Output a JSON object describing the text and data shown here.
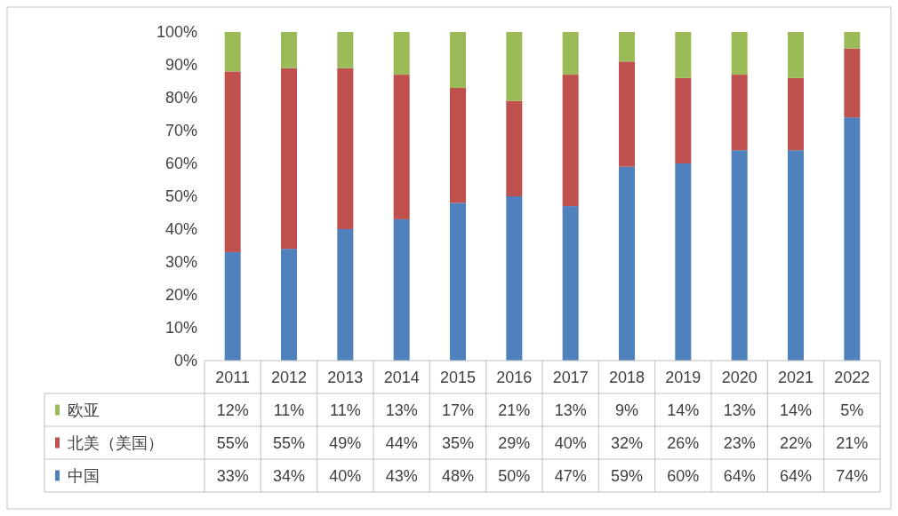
{
  "chart_data": {
    "type": "bar",
    "stacked": true,
    "categories": [
      "2011",
      "2012",
      "2013",
      "2014",
      "2015",
      "2016",
      "2017",
      "2018",
      "2019",
      "2020",
      "2021",
      "2022"
    ],
    "series": [
      {
        "name": "中国",
        "color": "#4f81bd",
        "values": [
          33,
          34,
          40,
          43,
          48,
          50,
          47,
          59,
          60,
          64,
          64,
          74
        ],
        "value_labels": [
          "33%",
          "34%",
          "40%",
          "43%",
          "48%",
          "50%",
          "47%",
          "59%",
          "60%",
          "64%",
          "64%",
          "74%"
        ]
      },
      {
        "name": "北美（美国）",
        "color": "#c0504d",
        "values": [
          55,
          55,
          49,
          44,
          35,
          29,
          40,
          32,
          26,
          23,
          22,
          21
        ],
        "value_labels": [
          "55%",
          "55%",
          "49%",
          "44%",
          "35%",
          "29%",
          "40%",
          "32%",
          "26%",
          "23%",
          "22%",
          "21%"
        ]
      },
      {
        "name": "欧亚",
        "color": "#9bbb59",
        "values": [
          12,
          11,
          11,
          13,
          17,
          21,
          13,
          9,
          14,
          13,
          14,
          5
        ],
        "value_labels": [
          "12%",
          "11%",
          "11%",
          "13%",
          "17%",
          "21%",
          "13%",
          "9%",
          "14%",
          "13%",
          "14%",
          "5%"
        ]
      }
    ],
    "ylim": [
      0,
      100
    ],
    "yticks": [
      {
        "value": 0,
        "label": "0%"
      },
      {
        "value": 10,
        "label": "10%"
      },
      {
        "value": 20,
        "label": "20%"
      },
      {
        "value": 30,
        "label": "30%"
      },
      {
        "value": 40,
        "label": "40%"
      },
      {
        "value": 50,
        "label": "50%"
      },
      {
        "value": 60,
        "label": "60%"
      },
      {
        "value": 70,
        "label": "70%"
      },
      {
        "value": 80,
        "label": "80%"
      },
      {
        "value": 90,
        "label": "90%"
      },
      {
        "value": 100,
        "label": "100%"
      }
    ],
    "legend": "bottom left"
  }
}
